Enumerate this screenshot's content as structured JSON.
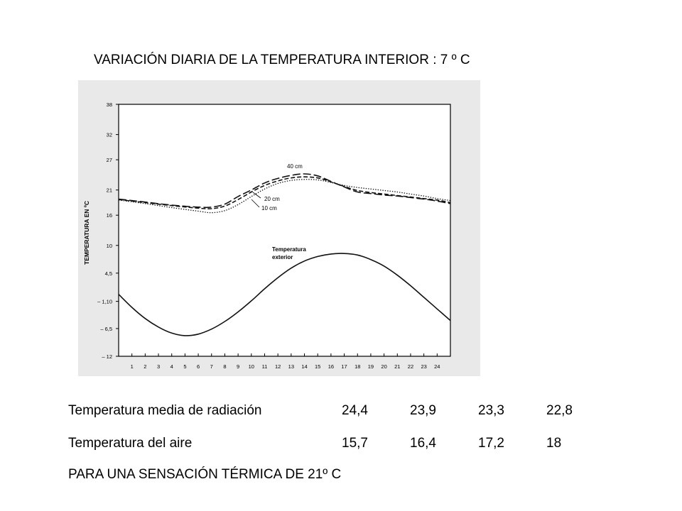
{
  "title": "VARIACIÓN DIARIA DE LA TEMPERATURA INTERIOR : 7 º C",
  "chart_data": {
    "type": "line",
    "ylabel": "TEMPERATURA EN ºC",
    "x_ticks": [
      "1",
      "2",
      "3",
      "4",
      "5",
      "6",
      "7",
      "8",
      "9",
      "10",
      "11",
      "12",
      "13",
      "14",
      "15",
      "16",
      "17",
      "18",
      "19",
      "20",
      "21",
      "22",
      "23",
      "24"
    ],
    "y_ticks": [
      "38",
      "32",
      "27",
      "21",
      "16",
      "10",
      "4,5",
      "– 1,10",
      "– 6,5",
      "– 12"
    ],
    "y_tick_values": [
      38,
      32,
      27,
      21,
      16,
      10,
      4.5,
      -1.1,
      -6.5,
      -12
    ],
    "xlim": [
      0,
      25
    ],
    "ylim": [
      -12,
      38
    ],
    "series": [
      {
        "name": "40 cm",
        "style": "longdash",
        "x": [
          0,
          2,
          4,
          6,
          7,
          8,
          9,
          10,
          11,
          12,
          13,
          14,
          15,
          16,
          17,
          18,
          19,
          20,
          21,
          22,
          23,
          24,
          25
        ],
        "y": [
          19.2,
          18.6,
          18.0,
          17.6,
          17.6,
          18.2,
          19.7,
          21.0,
          22.4,
          23.3,
          23.9,
          24.2,
          23.8,
          22.7,
          21.6,
          20.6,
          20.3,
          20.0,
          19.8,
          19.5,
          19.2,
          18.8,
          18.3
        ]
      },
      {
        "name": "20 cm",
        "style": "dash",
        "x": [
          0,
          2,
          4,
          6,
          7,
          8,
          9,
          10,
          11,
          12,
          13,
          14,
          15,
          16,
          17,
          18,
          19,
          20,
          21,
          22,
          23,
          24,
          25
        ],
        "y": [
          19.1,
          18.5,
          17.9,
          17.4,
          17.3,
          17.8,
          19.1,
          20.6,
          21.9,
          22.8,
          23.4,
          23.6,
          23.4,
          22.6,
          21.7,
          20.9,
          20.5,
          20.2,
          19.9,
          19.6,
          19.3,
          19.0,
          18.5
        ]
      },
      {
        "name": "10 cm",
        "style": "dotted",
        "x": [
          0,
          2,
          4,
          6,
          7,
          8,
          9,
          10,
          11,
          12,
          13,
          14,
          15,
          16,
          17,
          18,
          19,
          20,
          21,
          22,
          23,
          24,
          25
        ],
        "y": [
          19.0,
          18.3,
          17.5,
          16.8,
          16.5,
          16.9,
          18.1,
          19.7,
          21.2,
          22.3,
          22.9,
          23.1,
          23.0,
          22.5,
          21.9,
          21.5,
          21.2,
          20.9,
          20.6,
          20.2,
          19.8,
          19.3,
          18.9
        ]
      },
      {
        "name": "Temperatura exterior",
        "style": "solid",
        "x": [
          0,
          1,
          2,
          3,
          4,
          5,
          6,
          7,
          8,
          9,
          10,
          11,
          12,
          13,
          14,
          15,
          16,
          17,
          18,
          19,
          20,
          21,
          22,
          23,
          24,
          25
        ],
        "y": [
          0.3,
          -2.3,
          -4.5,
          -6.2,
          -7.4,
          -7.9,
          -7.6,
          -6.6,
          -5.1,
          -3.2,
          -1.0,
          1.4,
          3.6,
          5.5,
          6.9,
          7.8,
          8.3,
          8.4,
          8.1,
          7.2,
          5.9,
          4.1,
          2.0,
          -0.3,
          -2.6,
          -4.9
        ]
      }
    ],
    "labels": {
      "l40": "40 cm",
      "l20": "20 cm",
      "l10": "10 cm",
      "ext1": "Temperatura",
      "ext2": "exterior"
    }
  },
  "table": {
    "rows": [
      {
        "label": "Temperatura media de radiación",
        "values": [
          "24,4",
          "23,9",
          "23,3",
          "22,8"
        ]
      },
      {
        "label": "Temperatura del aire",
        "values": [
          "15,7",
          "16,4",
          "17,2",
          "18"
        ]
      }
    ]
  },
  "footer": "PARA UNA SENSACIÓN TÉRMICA DE 21º C"
}
